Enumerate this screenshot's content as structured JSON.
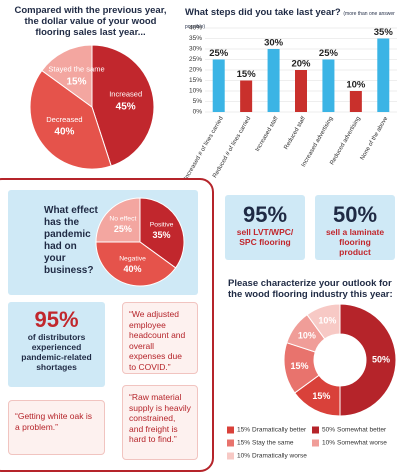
{
  "chart_data": [
    {
      "type": "pie",
      "title": "Compared with the previous year, the dollar value of your wood flooring sales last year...",
      "categories": [
        "Increased",
        "Decreased",
        "Stayed the same"
      ],
      "values": [
        45,
        40,
        15
      ],
      "value_labels": [
        "45%",
        "40%",
        "15%"
      ],
      "colors": [
        "#c1272d",
        "#e5534b",
        "#f3a6a0"
      ]
    },
    {
      "type": "bar",
      "title": "What steps did you take last year?",
      "subtitle": "(more than one answer possible)",
      "categories": [
        "Increased # of lines carried",
        "Reduced # of lines carried",
        "Increased staff",
        "Reduced staff",
        "Increased advertising",
        "Reduced advertising",
        "None of the above"
      ],
      "values": [
        25,
        15,
        30,
        20,
        25,
        10,
        35
      ],
      "value_labels": [
        "25%",
        "15%",
        "30%",
        "20%",
        "25%",
        "10%",
        "35%"
      ],
      "colors": [
        "#3bb4e5",
        "#c9302c",
        "#3bb4e5",
        "#c9302c",
        "#3bb4e5",
        "#c9302c",
        "#3bb4e5"
      ],
      "ylim": [
        0,
        40
      ],
      "yticks": [
        {
          "value": 0,
          "label": "0%"
        },
        {
          "value": 5,
          "label": "5%"
        },
        {
          "value": 10,
          "label": "10%"
        },
        {
          "value": 15,
          "label": "15%"
        },
        {
          "value": 20,
          "label": "20%"
        },
        {
          "value": 25,
          "label": "25%"
        },
        {
          "value": 30,
          "label": "30%"
        },
        {
          "value": 35,
          "label": "35%"
        },
        {
          "value": 40,
          "label": "40%"
        }
      ],
      "grid": true
    },
    {
      "type": "pie",
      "title": "What effect has the pandemic had on your business?",
      "categories": [
        "Positive",
        "Negative",
        "No effect"
      ],
      "values": [
        35,
        40,
        25
      ],
      "value_labels": [
        "35%",
        "40%",
        "25%"
      ],
      "colors": [
        "#c1272d",
        "#e5534b",
        "#f3a6a0"
      ]
    },
    {
      "type": "donut",
      "title": "Please characterize your outlook for the wood flooring industry this year:",
      "categories": [
        "Somewhat better",
        "Dramatically better",
        "Stay the same",
        "Somewhat worse",
        "Dramatically worse"
      ],
      "values": [
        50,
        15,
        15,
        10,
        10
      ],
      "value_labels": [
        "50%",
        "15%",
        "15%",
        "10%",
        "10%"
      ],
      "colors": [
        "#b5242a",
        "#d9413a",
        "#e8736d",
        "#f09d98",
        "#f7c9c5"
      ]
    }
  ],
  "callouts": [
    {
      "value": "95%",
      "text": "sell LVT/WPC/ SPC flooring"
    },
    {
      "value": "50%",
      "text": "sell a laminate flooring product"
    },
    {
      "value": "95%",
      "text": "of distributors experienced pandemic-related shortages"
    }
  ],
  "quotes": [
    "“We adjusted employee headcount and overall expenses due to COVID.”",
    "“Getting white oak is a problem.”",
    "“Raw material supply is heavily constrained, and freight is hard to find.”"
  ]
}
